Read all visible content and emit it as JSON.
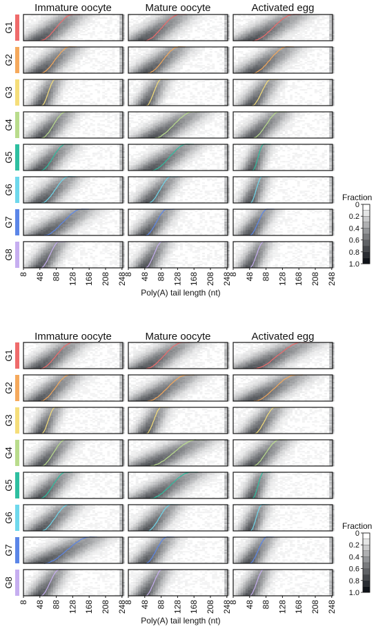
{
  "chart_data": [
    {
      "type": "heatmap",
      "columns": [
        "Immature oocyte",
        "Mature oocyte",
        "Activated egg"
      ],
      "groups": [
        {
          "label": "G1",
          "color": "#ef6b6b"
        },
        {
          "label": "G2",
          "color": "#f5a95c"
        },
        {
          "label": "G3",
          "color": "#f5de7a"
        },
        {
          "label": "G4",
          "color": "#b9dc8c"
        },
        {
          "label": "G5",
          "color": "#2ebfa0"
        },
        {
          "label": "G6",
          "color": "#6fd8ec"
        },
        {
          "label": "G7",
          "color": "#5b86e8"
        },
        {
          "label": "G8",
          "color": "#c6aef0"
        }
      ],
      "x_ticks": [
        "8",
        "48",
        "88",
        "128",
        "168",
        "208",
        "248"
      ],
      "xlim": [
        8,
        250
      ],
      "xlabel": "Poly(A) tail length (nt)",
      "colorbar": {
        "title": "Fraction",
        "ticks": [
          "0",
          "0.2",
          "0.4",
          "0.6",
          "0.8",
          "1.0"
        ],
        "range": [
          0,
          1
        ]
      },
      "median_curves": [
        [
          [
            48,
            128
          ],
          [
            48,
            132
          ],
          [
            55,
            155
          ]
        ],
        [
          [
            50,
            120
          ],
          [
            55,
            130
          ],
          [
            56,
            138
          ]
        ],
        [
          [
            52,
            85
          ],
          [
            52,
            88
          ],
          [
            54,
            100
          ]
        ],
        [
          [
            52,
            110
          ],
          [
            72,
            165
          ],
          [
            56,
            120
          ]
        ],
        [
          [
            50,
            110
          ],
          [
            65,
            150
          ],
          [
            55,
            82
          ]
        ],
        [
          [
            52,
            118
          ],
          [
            58,
            112
          ],
          [
            50,
            78
          ]
        ],
        [
          [
            58,
            150
          ],
          [
            50,
            102
          ],
          [
            48,
            90
          ]
        ],
        [
          [
            50,
            95
          ],
          [
            50,
            90
          ],
          [
            48,
            82
          ]
        ]
      ]
    },
    {
      "type": "heatmap",
      "columns": [
        "Immature oocyte",
        "Mature oocyte",
        "Activated egg"
      ],
      "groups": [
        {
          "label": "G1",
          "color": "#ef6b6b"
        },
        {
          "label": "G2",
          "color": "#f5a95c"
        },
        {
          "label": "G3",
          "color": "#f5de7a"
        },
        {
          "label": "G4",
          "color": "#b9dc8c"
        },
        {
          "label": "G5",
          "color": "#2ebfa0"
        },
        {
          "label": "G6",
          "color": "#6fd8ec"
        },
        {
          "label": "G7",
          "color": "#5b86e8"
        },
        {
          "label": "G8",
          "color": "#c6aef0"
        }
      ],
      "x_ticks": [
        "8",
        "48",
        "88",
        "128",
        "168",
        "208",
        "248"
      ],
      "xlim": [
        8,
        250
      ],
      "xlabel": "Poly(A) tail length (nt)",
      "colorbar": {
        "title": "Fraction",
        "ticks": [
          "0",
          "0.2",
          "0.4",
          "0.6",
          "0.8",
          "1.0"
        ],
        "range": [
          0,
          1
        ]
      },
      "median_curves": [
        [
          [
            48,
            128
          ],
          [
            50,
            140
          ],
          [
            58,
            175
          ]
        ],
        [
          [
            50,
            120
          ],
          [
            55,
            150
          ],
          [
            58,
            160
          ]
        ],
        [
          [
            52,
            85
          ],
          [
            52,
            88
          ],
          [
            60,
            110
          ]
        ],
        [
          [
            52,
            110
          ],
          [
            60,
            175
          ],
          [
            56,
            120
          ]
        ],
        [
          [
            50,
            110
          ],
          [
            62,
            160
          ],
          [
            55,
            82
          ]
        ],
        [
          [
            52,
            118
          ],
          [
            55,
            112
          ],
          [
            50,
            78
          ]
        ],
        [
          [
            58,
            170
          ],
          [
            50,
            102
          ],
          [
            48,
            90
          ]
        ],
        [
          [
            50,
            95
          ],
          [
            50,
            90
          ],
          [
            48,
            82
          ]
        ]
      ]
    }
  ]
}
